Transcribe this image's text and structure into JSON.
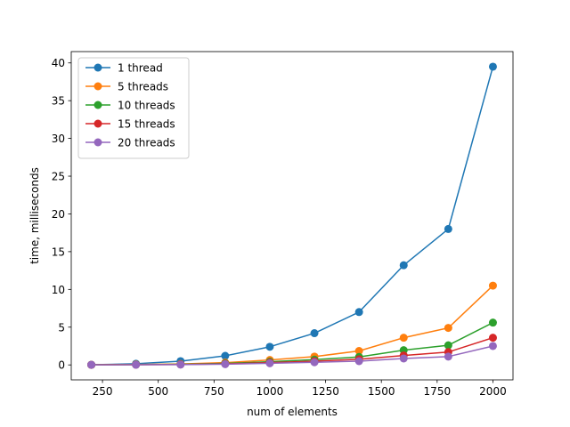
{
  "chart_data": {
    "type": "line",
    "title": "",
    "xlabel": "num of elements",
    "ylabel": "time, milliseconds",
    "xlim": [
      110,
      2090
    ],
    "ylim": [
      -1.98,
      41.5
    ],
    "xticks": [
      250,
      500,
      750,
      1000,
      1250,
      1500,
      1750,
      2000
    ],
    "yticks": [
      0,
      5,
      10,
      15,
      20,
      25,
      30,
      35,
      40
    ],
    "x": [
      200,
      400,
      600,
      800,
      1000,
      1200,
      1400,
      1600,
      1800,
      2000
    ],
    "grid": false,
    "legend_position": "upper-left",
    "series": [
      {
        "name": "1 thread",
        "color": "#1f77b4",
        "values": [
          0.02,
          0.15,
          0.5,
          1.2,
          2.4,
          4.2,
          7.0,
          13.2,
          18.0,
          39.5
        ]
      },
      {
        "name": "5 threads",
        "color": "#ff7f0e",
        "values": [
          0.01,
          0.06,
          0.12,
          0.3,
          0.65,
          1.1,
          1.85,
          3.6,
          4.9,
          10.5
        ]
      },
      {
        "name": "10 threads",
        "color": "#2ca02c",
        "values": [
          0.01,
          0.04,
          0.08,
          0.2,
          0.42,
          0.7,
          1.05,
          1.95,
          2.6,
          5.6
        ]
      },
      {
        "name": "15 threads",
        "color": "#d62728",
        "values": [
          0.01,
          0.03,
          0.06,
          0.14,
          0.3,
          0.5,
          0.75,
          1.25,
          1.7,
          3.6
        ]
      },
      {
        "name": "20 threads",
        "color": "#9467bd",
        "values": [
          0.01,
          0.02,
          0.04,
          0.1,
          0.22,
          0.35,
          0.5,
          0.85,
          1.1,
          2.5
        ]
      }
    ]
  }
}
